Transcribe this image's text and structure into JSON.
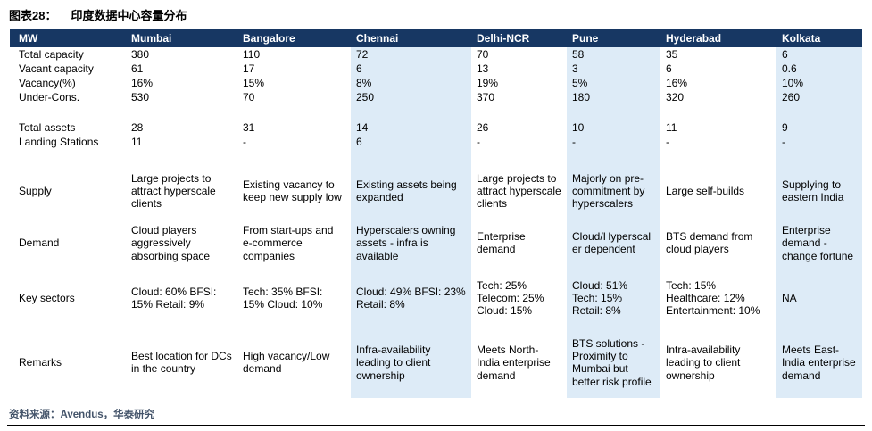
{
  "header": {
    "figure_label": "图表28：",
    "figure_title": "印度数据中心容量分布"
  },
  "source_note": "资料来源：Avendus，华泰研究",
  "colors": {
    "header_bg": "#173763",
    "header_text": "#FFFFFF",
    "shaded_column_bg": "#DDEBF7",
    "source_text": "#44546A"
  },
  "chart_data": {
    "type": "table",
    "title": "图表28：印度数据中心容量分布",
    "columns": [
      "MW",
      "Mumbai",
      "Bangalore",
      "Chennai",
      "Delhi-NCR",
      "Pune",
      "Hyderabad",
      "Kolkata"
    ],
    "shaded_columns": [
      3,
      5,
      7
    ],
    "rows": [
      {
        "key": "total-capacity",
        "type": "num",
        "label": "Total capacity",
        "cells": [
          "380",
          "110",
          "72",
          "70",
          "58",
          "35",
          "6"
        ]
      },
      {
        "key": "vacant-capacity",
        "type": "num",
        "label": "Vacant capacity",
        "cells": [
          "61",
          "17",
          "6",
          "13",
          "3",
          "6",
          "0.6"
        ]
      },
      {
        "key": "vacancy-pct",
        "type": "num",
        "label": "Vacancy(%)",
        "cells": [
          "16%",
          "15%",
          "8%",
          "19%",
          "5%",
          "16%",
          "10%"
        ]
      },
      {
        "key": "under-cons",
        "type": "num",
        "label": "Under-Cons.",
        "cells": [
          "530",
          "70",
          "250",
          "370",
          "180",
          "320",
          "260"
        ]
      },
      {
        "key": "spacer-1",
        "type": "spacer",
        "label": "",
        "cells": [
          "",
          "",
          "",
          "",
          "",
          "",
          ""
        ]
      },
      {
        "key": "total-assets",
        "type": "num",
        "label": "Total assets",
        "cells": [
          "28",
          "31",
          "14",
          "26",
          "10",
          "11",
          "9"
        ]
      },
      {
        "key": "landing-stations",
        "type": "num",
        "label": "Landing Stations",
        "cells": [
          "11",
          "-",
          "6",
          "-",
          "-",
          "-",
          "-"
        ]
      },
      {
        "key": "spacer-2",
        "type": "spacer",
        "label": "",
        "cells": [
          "",
          "",
          "",
          "",
          "",
          "",
          ""
        ]
      },
      {
        "key": "supply",
        "type": "text",
        "label": "Supply",
        "cells": [
          "Large projects to attract hyperscale clients",
          "Existing vacancy to keep new supply low",
          "Existing assets being expanded",
          "Large projects to attract hyperscale clients",
          "Majorly on pre-commitment by hyperscalers",
          "Large self-builds",
          "Supplying to eastern India"
        ]
      },
      {
        "key": "demand",
        "type": "text",
        "label": "Demand",
        "cells": [
          "Cloud players aggressively absorbing space",
          "From start-ups and e-commerce companies",
          "Hyperscalers owning assets - infra is available",
          "Enterprise demand",
          "Cloud/Hyperscaler dependent",
          "BTS demand from cloud players",
          "Enterprise demand - change fortune"
        ]
      },
      {
        "key": "key-sectors",
        "type": "text",
        "label": "Key sectors",
        "cells": [
          "Cloud: 60% BFSI: 15% Retail: 9%",
          "Tech: 35% BFSI: 15% Cloud: 10%",
          "Cloud: 49% BFSI: 23% Retail: 8%",
          "Tech: 25% Telecom: 25% Cloud: 15%",
          "Cloud: 51% Tech: 15% Retail: 8%",
          "Tech: 15% Healthcare: 12% Entertainment: 10%",
          "NA"
        ]
      },
      {
        "key": "remarks",
        "type": "text",
        "label": "Remarks",
        "cells": [
          "Best location for DCs in the country",
          "High vacancy/Low demand",
          "Infra-availability leading to client ownership",
          "Meets North-India enterprise demand",
          "BTS solutions - Proximity to Mumbai but better risk profile",
          "Intra-availability leading to client ownership",
          "Meets East-India enterprise demand"
        ]
      }
    ]
  }
}
